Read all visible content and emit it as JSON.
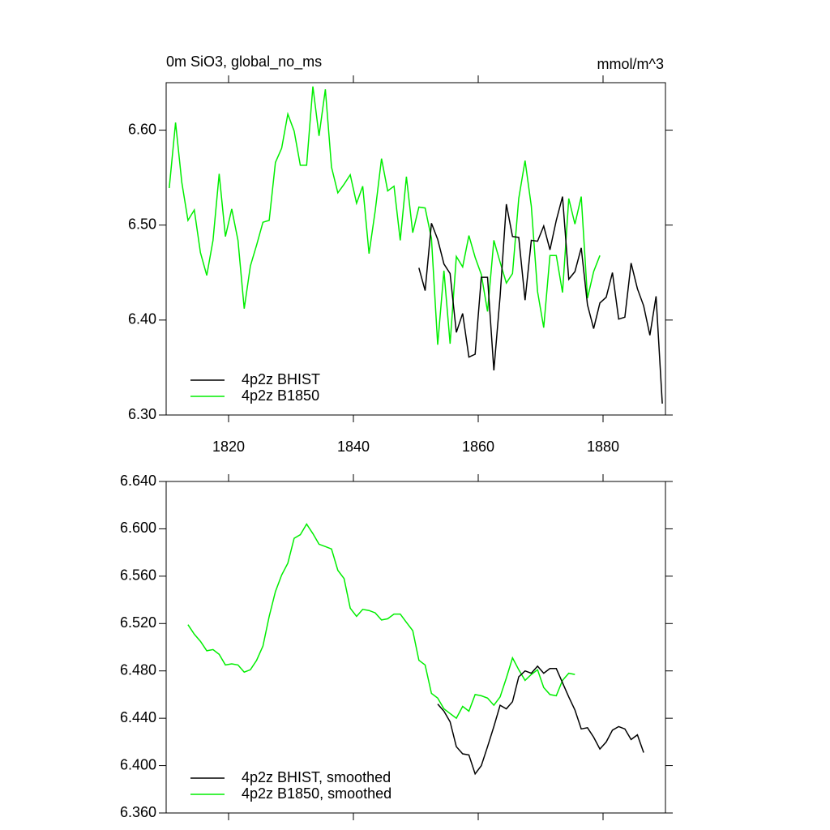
{
  "chart_data": [
    {
      "type": "line",
      "title": "0m SiO3, global_no_ms",
      "units": "mmol/m^3",
      "xlim": [
        1810,
        1890
      ],
      "xticks": [
        1820,
        1840,
        1860,
        1880
      ],
      "ylim": [
        6.3,
        6.65
      ],
      "yticks": [
        {
          "value": 6.3,
          "label": "6.30"
        },
        {
          "value": 6.4,
          "label": "6.40"
        },
        {
          "value": 6.5,
          "label": "6.50"
        },
        {
          "value": 6.6,
          "label": "6.60"
        }
      ],
      "series": [
        {
          "name": "4p2z BHIST",
          "color": "#000000",
          "x": [
            1850.5,
            1851.5,
            1852.5,
            1853.5,
            1854.5,
            1855.5,
            1856.5,
            1857.5,
            1858.5,
            1859.5,
            1860.5,
            1861.5,
            1862.5,
            1863.5,
            1864.5,
            1865.5,
            1866.5,
            1867.5,
            1868.5,
            1869.5,
            1870.5,
            1871.5,
            1872.5,
            1873.5,
            1874.5,
            1875.5,
            1876.5,
            1877.5,
            1878.5,
            1879.5,
            1880.5,
            1881.5,
            1882.5,
            1883.5,
            1884.5,
            1885.5,
            1886.5,
            1887.5,
            1888.5,
            1889.5
          ],
          "values": [
            6.455,
            6.431,
            6.502,
            6.485,
            6.459,
            6.449,
            6.387,
            6.407,
            6.361,
            6.364,
            6.445,
            6.445,
            6.347,
            6.425,
            6.522,
            6.488,
            6.487,
            6.421,
            6.484,
            6.483,
            6.499,
            6.474,
            6.505,
            6.53,
            6.443,
            6.451,
            6.476,
            6.416,
            6.391,
            6.418,
            6.424,
            6.45,
            6.401,
            6.403,
            6.46,
            6.433,
            6.415,
            6.384,
            6.425,
            6.312
          ]
        },
        {
          "name": "4p2z B1850",
          "color": "#00ee00",
          "x": [
            1810.5,
            1811.5,
            1812.5,
            1813.5,
            1814.5,
            1815.5,
            1816.5,
            1817.5,
            1818.5,
            1819.5,
            1820.5,
            1821.5,
            1822.5,
            1823.5,
            1824.5,
            1825.5,
            1826.5,
            1827.5,
            1828.5,
            1829.5,
            1830.5,
            1831.5,
            1832.5,
            1833.5,
            1834.5,
            1835.5,
            1836.5,
            1837.5,
            1838.5,
            1839.5,
            1840.5,
            1841.5,
            1842.5,
            1843.5,
            1844.5,
            1845.5,
            1846.5,
            1847.5,
            1848.5,
            1849.5,
            1850.5,
            1851.5,
            1852.5,
            1853.5,
            1854.5,
            1855.5,
            1856.5,
            1857.5,
            1858.5,
            1859.5,
            1860.5,
            1861.5,
            1862.5,
            1863.5,
            1864.5,
            1865.5,
            1866.5,
            1867.5,
            1868.5,
            1869.5,
            1870.5,
            1871.5,
            1872.5,
            1873.5,
            1874.5,
            1875.5,
            1876.5,
            1877.5,
            1878.5,
            1879.5
          ],
          "values": [
            6.539,
            6.608,
            6.545,
            6.505,
            6.516,
            6.471,
            6.447,
            6.484,
            6.554,
            6.488,
            6.517,
            6.484,
            6.412,
            6.457,
            6.479,
            6.503,
            6.505,
            6.566,
            6.581,
            6.617,
            6.599,
            6.563,
            6.563,
            6.646,
            6.594,
            6.643,
            6.561,
            6.534,
            6.543,
            6.553,
            6.523,
            6.541,
            6.47,
            6.515,
            6.57,
            6.536,
            6.541,
            6.484,
            6.551,
            6.492,
            6.519,
            6.518,
            6.486,
            6.374,
            6.452,
            6.375,
            6.467,
            6.456,
            6.489,
            6.466,
            6.448,
            6.409,
            6.484,
            6.461,
            6.439,
            6.449,
            6.528,
            6.568,
            6.52,
            6.43,
            6.392,
            6.468,
            6.468,
            6.429,
            6.528,
            6.501,
            6.53,
            6.423,
            6.451,
            6.468
          ]
        }
      ]
    },
    {
      "type": "line",
      "xlim": [
        1810,
        1890
      ],
      "ylim": [
        6.36,
        6.64
      ],
      "yticks": [
        {
          "value": 6.36,
          "label": "6.360"
        },
        {
          "value": 6.4,
          "label": "6.400"
        },
        {
          "value": 6.44,
          "label": "6.440"
        },
        {
          "value": 6.48,
          "label": "6.480"
        },
        {
          "value": 6.52,
          "label": "6.520"
        },
        {
          "value": 6.56,
          "label": "6.560"
        },
        {
          "value": 6.6,
          "label": "6.600"
        },
        {
          "value": 6.64,
          "label": "6.640"
        }
      ],
      "series": [
        {
          "name": "4p2z BHIST, smoothed",
          "color": "#000000",
          "x": [
            1853.5,
            1854.5,
            1855.5,
            1856.5,
            1857.5,
            1858.5,
            1859.5,
            1860.5,
            1861.5,
            1862.5,
            1863.5,
            1864.5,
            1865.5,
            1866.5,
            1867.5,
            1868.5,
            1869.5,
            1870.5,
            1871.5,
            1872.5,
            1873.5,
            1874.5,
            1875.5,
            1876.5,
            1877.5,
            1878.5,
            1879.5,
            1880.5,
            1881.5,
            1882.5,
            1883.5,
            1884.5,
            1885.5,
            1886.5
          ],
          "values": [
            6.452,
            6.446,
            6.437,
            6.416,
            6.41,
            6.409,
            6.393,
            6.4,
            6.416,
            6.433,
            6.451,
            6.448,
            6.454,
            6.475,
            6.48,
            6.478,
            6.484,
            6.478,
            6.482,
            6.482,
            6.47,
            6.458,
            6.447,
            6.431,
            6.432,
            6.424,
            6.414,
            6.42,
            6.43,
            6.433,
            6.431,
            6.422,
            6.426,
            6.411
          ]
        },
        {
          "name": "4p2z B1850, smoothed",
          "color": "#00ee00",
          "x": [
            1813.5,
            1814.5,
            1815.5,
            1816.5,
            1817.5,
            1818.5,
            1819.5,
            1820.5,
            1821.5,
            1822.5,
            1823.5,
            1824.5,
            1825.5,
            1826.5,
            1827.5,
            1828.5,
            1829.5,
            1830.5,
            1831.5,
            1832.5,
            1833.5,
            1834.5,
            1835.5,
            1836.5,
            1837.5,
            1838.5,
            1839.5,
            1840.5,
            1841.5,
            1842.5,
            1843.5,
            1844.5,
            1845.5,
            1846.5,
            1847.5,
            1848.5,
            1849.5,
            1850.5,
            1851.5,
            1852.5,
            1853.5,
            1854.5,
            1855.5,
            1856.5,
            1857.5,
            1858.5,
            1859.5,
            1860.5,
            1861.5,
            1862.5,
            1863.5,
            1864.5,
            1865.5,
            1866.5,
            1867.5,
            1868.5,
            1869.5,
            1870.5,
            1871.5,
            1872.5,
            1873.5,
            1874.5,
            1875.5
          ],
          "values": [
            6.519,
            6.511,
            6.505,
            6.497,
            6.498,
            6.494,
            6.485,
            6.486,
            6.485,
            6.479,
            6.481,
            6.489,
            6.501,
            6.526,
            6.547,
            6.561,
            6.571,
            6.592,
            6.595,
            6.604,
            6.596,
            6.587,
            6.585,
            6.583,
            6.565,
            6.558,
            6.533,
            6.526,
            6.532,
            6.531,
            6.529,
            6.523,
            6.524,
            6.528,
            6.528,
            6.521,
            6.514,
            6.489,
            6.485,
            6.461,
            6.457,
            6.448,
            6.444,
            6.44,
            6.45,
            6.446,
            6.46,
            6.459,
            6.457,
            6.451,
            6.458,
            6.474,
            6.491,
            6.481,
            6.472,
            6.477,
            6.481,
            6.466,
            6.46,
            6.459,
            6.472,
            6.478,
            6.477
          ]
        }
      ]
    }
  ]
}
